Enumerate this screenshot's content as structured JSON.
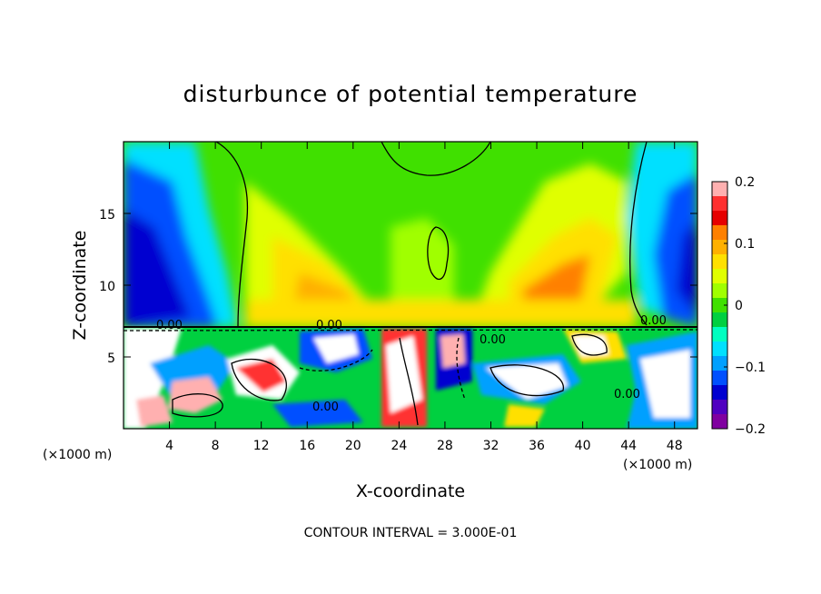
{
  "chart_data": {
    "type": "heatmap",
    "title": "disturbunce of potential temperature",
    "xlabel": "X-coordinate",
    "ylabel": "Z-coordinate",
    "x_unit": "(×1000 m)",
    "z_unit": "(×1000 m)",
    "xlim": [
      0,
      50
    ],
    "ylim": [
      0,
      20
    ],
    "x_ticks": [
      4,
      8,
      12,
      16,
      20,
      24,
      28,
      32,
      36,
      40,
      44,
      48
    ],
    "y_ticks": [
      5,
      10,
      15
    ],
    "colorbar": {
      "range": [
        -0.2,
        0.2
      ],
      "tick_values": [
        0.2,
        0.1,
        0,
        -0.1,
        -0.2
      ],
      "tick_labels": [
        "0.2",
        "0.1",
        "0",
        "−0.1",
        "−0.2"
      ],
      "colors": [
        "#ffb0b0",
        "#ff3030",
        "#e60000",
        "#ff8000",
        "#ffb000",
        "#ffe000",
        "#e0ff00",
        "#a0ff00",
        "#40e000",
        "#00d040",
        "#00ffc0",
        "#00e0ff",
        "#00a0ff",
        "#0050ff",
        "#0000d0",
        "#5000c0",
        "#8000a0"
      ]
    },
    "contour_labels": [
      "0.00",
      "0.00",
      "0.00",
      "0.00",
      "0.00",
      "0.00"
    ],
    "footer": "CONTOUR INTERVAL = 3.000E-01"
  }
}
